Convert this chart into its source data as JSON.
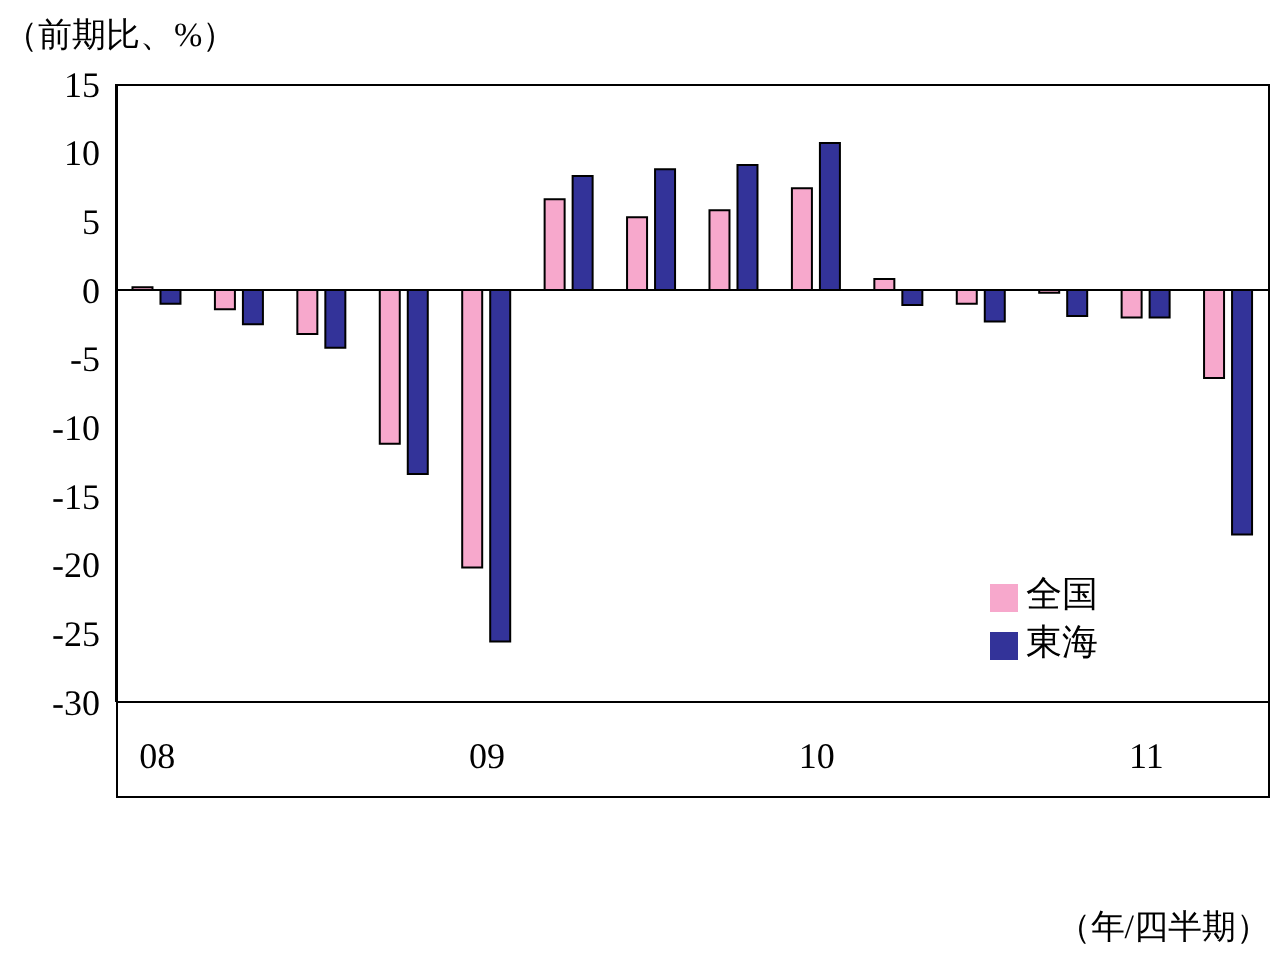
{
  "chart_data": {
    "type": "bar",
    "ylabel": "（前期比、%）",
    "xlabel": "（年/四半期）",
    "categories": [
      "08",
      null,
      null,
      null,
      "09",
      null,
      null,
      null,
      "10",
      null,
      null,
      null,
      "11",
      null
    ],
    "series": [
      {
        "name": "全国",
        "color": "#f7a8cc",
        "values": [
          0.2,
          -1.4,
          -3.2,
          -11.2,
          -20.2,
          6.6,
          5.3,
          5.8,
          7.4,
          0.8,
          -1.0,
          -0.2,
          -2.0,
          -6.4
        ]
      },
      {
        "name": "東海",
        "color": "#333399",
        "values": [
          -1.0,
          -2.5,
          -4.2,
          -13.4,
          -25.6,
          8.3,
          8.8,
          9.1,
          10.7,
          -1.1,
          -2.3,
          -1.9,
          -2.0,
          -17.8
        ]
      }
    ],
    "ylim": [
      -30,
      15
    ],
    "yticks": [
      -30,
      -25,
      -20,
      -15,
      -10,
      -5,
      0,
      5,
      10,
      15
    ],
    "ref_lines": [
      {
        "axis": "y",
        "value": 0,
        "color": "#000000"
      }
    ],
    "legend": "right"
  }
}
